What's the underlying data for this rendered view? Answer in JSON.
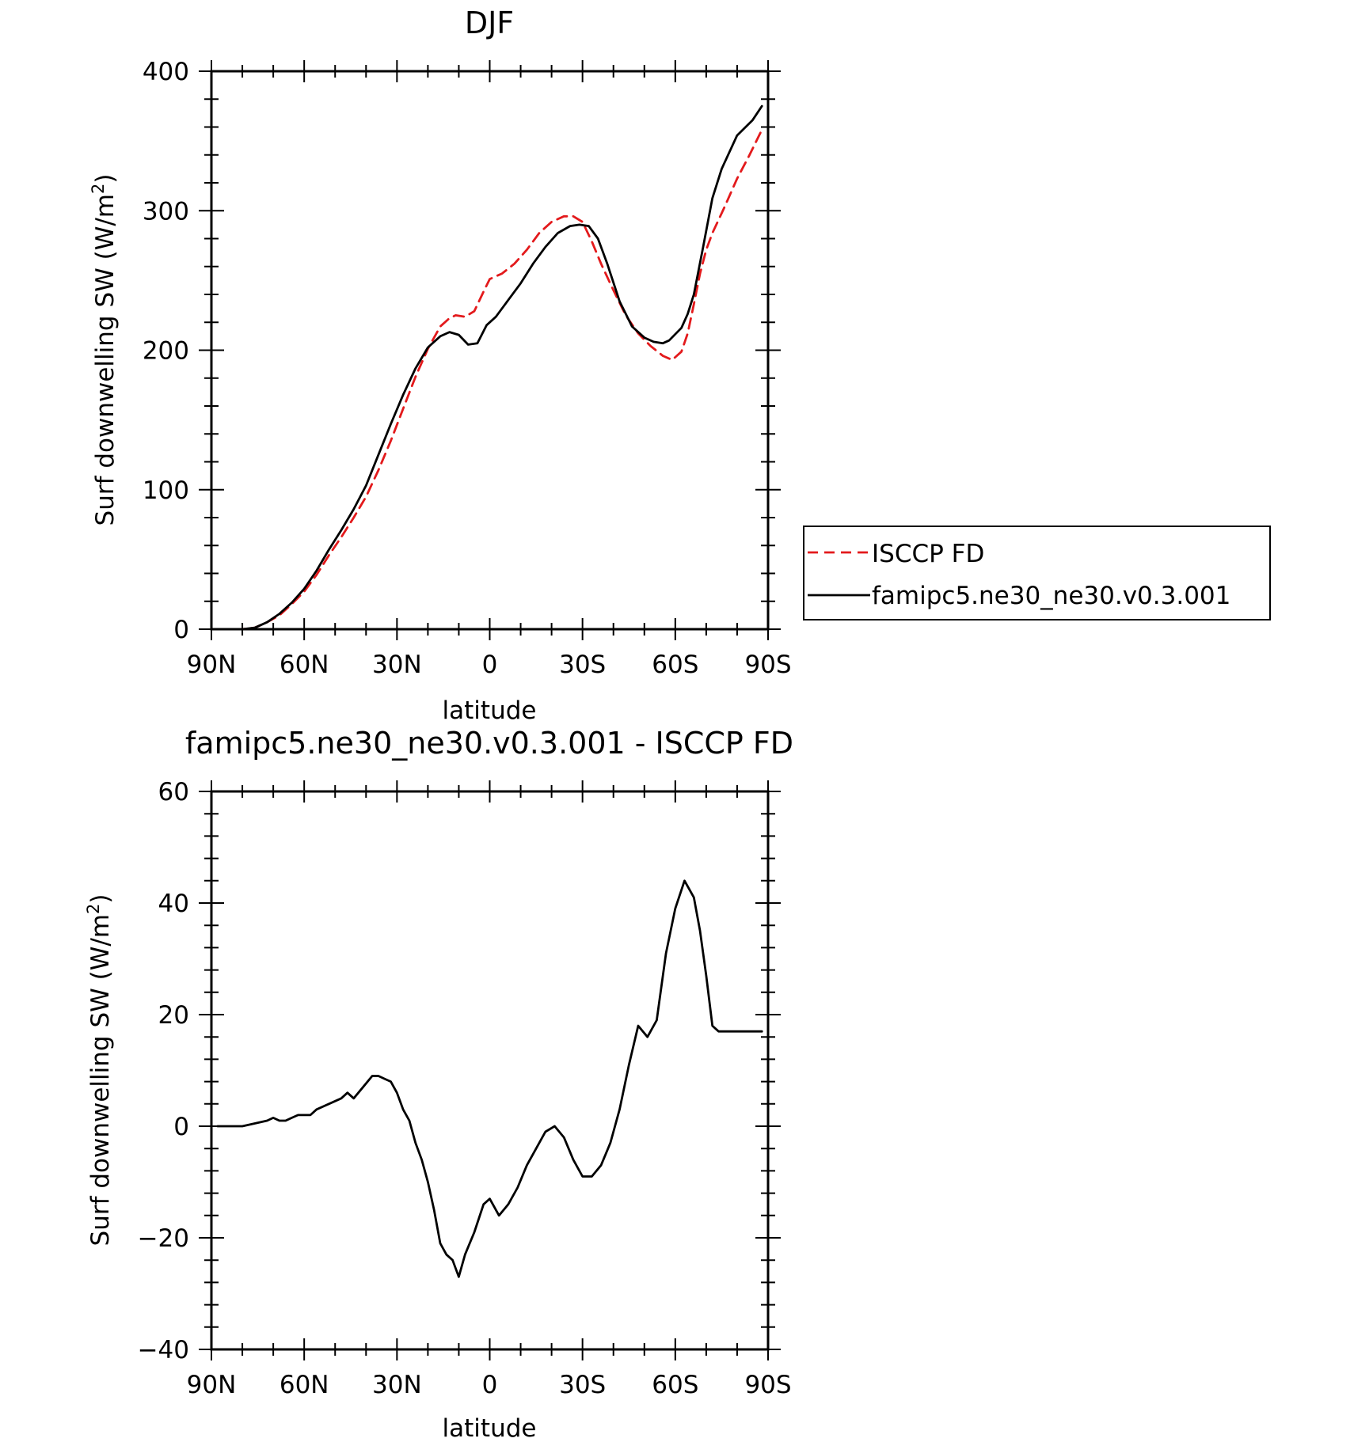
{
  "chart_data": [
    {
      "type": "line",
      "title": "DJF",
      "xlabel": "latitude",
      "ylabel": "Surf downwelling SW (W/m",
      "ylabel_sup": "2",
      "ylabel_close": ")",
      "xlim": [
        90,
        -90
      ],
      "ylim": [
        0,
        400
      ],
      "xticks": [
        90,
        60,
        30,
        0,
        -30,
        -60,
        -90
      ],
      "xtick_labels": [
        "90N",
        "60N",
        "30N",
        "0",
        "30S",
        "60S",
        "90S"
      ],
      "yticks": [
        0,
        100,
        200,
        300,
        400
      ],
      "ytick_labels": [
        "0",
        "100",
        "200",
        "300",
        "400"
      ],
      "grid": false,
      "legend_position": "outside-right",
      "series": [
        {
          "name": "ISCCP FD",
          "color": "#e31a1c",
          "dash": "dashed",
          "x": [
            88,
            84,
            80,
            76,
            72,
            68,
            64,
            60,
            56,
            52,
            48,
            44,
            40,
            36,
            32,
            28,
            24,
            20,
            16,
            13,
            11,
            8,
            5,
            2,
            0,
            -4,
            -8,
            -12,
            -16,
            -20,
            -24,
            -27,
            -30,
            -33,
            -36,
            -40,
            -44,
            -48,
            -52,
            -56,
            -59,
            -62,
            -64,
            -66,
            -68,
            -70,
            -72,
            -76,
            -80,
            -84,
            -88
          ],
          "y": [
            0,
            0,
            0,
            1,
            5,
            10,
            18,
            27,
            39,
            53,
            66,
            80,
            95,
            114,
            135,
            158,
            181,
            201,
            217,
            223,
            225,
            224,
            228,
            242,
            251,
            255,
            262,
            272,
            284,
            292,
            296,
            296,
            292,
            278,
            262,
            243,
            225,
            212,
            203,
            196,
            193,
            199,
            212,
            233,
            255,
            272,
            284,
            303,
            323,
            340,
            358
          ]
        },
        {
          "name": "famipc5.ne30_ne30.v0.3.001",
          "color": "#000000",
          "dash": "solid",
          "x": [
            88,
            84,
            80,
            76,
            72,
            68,
            64,
            60,
            56,
            52,
            48,
            44,
            40,
            36,
            32,
            28,
            24,
            20,
            16,
            13,
            10,
            7,
            4,
            1,
            -2,
            -6,
            -10,
            -14,
            -18,
            -22,
            -26,
            -29,
            -32,
            -35,
            -38,
            -42,
            -46,
            -50,
            -53,
            -56,
            -58,
            -62,
            -64,
            -66,
            -69,
            -72,
            -75,
            -80,
            -85,
            -88
          ],
          "y": [
            0,
            0,
            0,
            1,
            5,
            11,
            19,
            29,
            42,
            57,
            71,
            86,
            103,
            125,
            147,
            168,
            187,
            202,
            210,
            213,
            211,
            204,
            205,
            218,
            224,
            236,
            248,
            262,
            274,
            284,
            289,
            290,
            289,
            280,
            262,
            235,
            217,
            209,
            206,
            205,
            207,
            216,
            226,
            240,
            274,
            309,
            330,
            354,
            365,
            375
          ]
        }
      ]
    },
    {
      "type": "line",
      "title": "famipc5.ne30_ne30.v0.3.001 - ISCCP FD",
      "xlabel": "latitude",
      "ylabel": "Surf downwelling SW (W/m",
      "ylabel_sup": "2",
      "ylabel_close": ")",
      "xlim": [
        90,
        -90
      ],
      "ylim": [
        -40,
        60
      ],
      "xticks": [
        90,
        60,
        30,
        0,
        -30,
        -60,
        -90
      ],
      "xtick_labels": [
        "90N",
        "60N",
        "30N",
        "0",
        "30S",
        "60S",
        "90S"
      ],
      "yticks": [
        -40,
        -20,
        0,
        20,
        40,
        60
      ],
      "ytick_labels": [
        "−40",
        "−20",
        "0",
        "20",
        "40",
        "60"
      ],
      "grid": false,
      "series": [
        {
          "color": "#000000",
          "dash": "solid",
          "x": [
            88,
            84,
            80,
            76,
            72,
            70,
            68,
            66,
            64,
            62,
            60,
            58,
            56,
            52,
            48,
            46,
            44,
            41,
            38,
            36,
            34,
            32,
            30,
            28,
            26,
            24,
            22,
            20,
            18,
            16,
            14,
            12,
            10,
            8,
            5,
            2,
            0,
            -1,
            -3,
            -6,
            -9,
            -12,
            -15,
            -18,
            -21,
            -24,
            -27,
            -30,
            -33,
            -36,
            -39,
            -42,
            -45,
            -48,
            -51,
            -54,
            -57,
            -60,
            -63,
            -66,
            -68,
            -70,
            -72,
            -74,
            -76,
            -79,
            -82,
            -85,
            -88
          ],
          "y": [
            0,
            0,
            0,
            0.5,
            1,
            1.5,
            1,
            1,
            1.5,
            2,
            2,
            2,
            3,
            4,
            5,
            6,
            5,
            7,
            9,
            9,
            8.5,
            8,
            6,
            3,
            1,
            -3,
            -6,
            -10,
            -15,
            -21,
            -23,
            -24,
            -27,
            -23,
            -19,
            -14,
            -13,
            -14,
            -16,
            -14,
            -11,
            -7,
            -4,
            -1,
            0,
            -2,
            -6,
            -9,
            -9,
            -7,
            -3,
            3,
            11,
            18,
            16,
            19,
            31,
            39,
            44,
            41,
            35,
            27,
            18,
            17,
            17,
            17,
            17,
            17,
            17
          ]
        }
      ]
    }
  ]
}
